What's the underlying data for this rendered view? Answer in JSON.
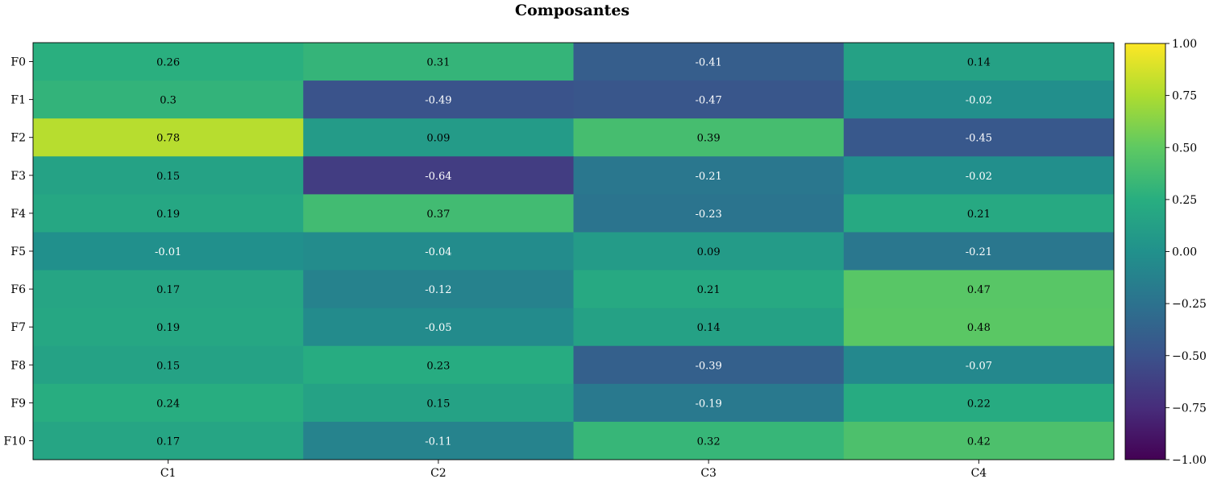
{
  "chart_data": {
    "type": "heatmap",
    "title": "Composantes",
    "xlabel": "",
    "ylabel": "",
    "x_categories": [
      "C1",
      "C2",
      "C3",
      "C4"
    ],
    "y_categories": [
      "F0",
      "F1",
      "F2",
      "F3",
      "F4",
      "F5",
      "F6",
      "F7",
      "F8",
      "F9",
      "F10"
    ],
    "values": [
      [
        0.26,
        0.31,
        -0.41,
        0.14
      ],
      [
        0.3,
        -0.49,
        -0.47,
        -0.02
      ],
      [
        0.78,
        0.09,
        0.39,
        -0.45
      ],
      [
        0.15,
        -0.64,
        -0.21,
        -0.02
      ],
      [
        0.19,
        0.37,
        -0.23,
        0.21
      ],
      [
        -0.01,
        -0.04,
        0.09,
        -0.21
      ],
      [
        0.17,
        -0.12,
        0.21,
        0.47
      ],
      [
        0.19,
        -0.05,
        0.14,
        0.48
      ],
      [
        0.15,
        0.23,
        -0.39,
        -0.07
      ],
      [
        0.24,
        0.15,
        -0.19,
        0.22
      ],
      [
        0.17,
        -0.11,
        0.32,
        0.42
      ]
    ],
    "colormap": "viridis",
    "vmin": -1.0,
    "vmax": 1.0,
    "colorbar_ticks": [
      "1.00",
      "0.75",
      "0.50",
      "0.25",
      "0.00",
      "−0.25",
      "−0.50",
      "−0.75",
      "−1.00"
    ],
    "grid": false,
    "legend": "colorbar-right"
  }
}
